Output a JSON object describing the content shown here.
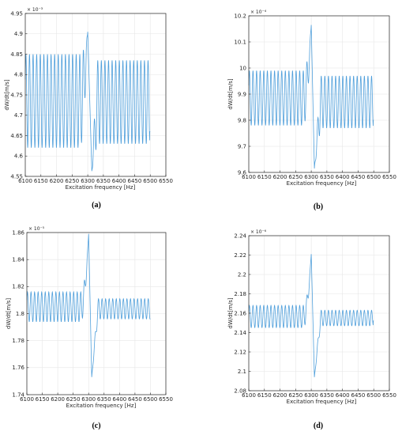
{
  "chart_data": [
    {
      "panel": "(a)",
      "type": "line",
      "xlabel": "Excitation frequency [Hz]",
      "ylabel": "dW/dt[m/s]",
      "exponent": "× 10⁻³",
      "xlim": [
        6100,
        6550
      ],
      "ylim": [
        4.55,
        4.95
      ],
      "xticks": [
        "6100",
        "6150",
        "6200",
        "6250",
        "6300",
        "6350",
        "6400",
        "6450",
        "6500",
        "6550"
      ],
      "yticks": [
        "4.55",
        "4.6",
        "4.65",
        "4.7",
        "4.75",
        "4.8",
        "4.85",
        "4.9",
        "4.95"
      ],
      "grid": true,
      "color": "#4f9fdb",
      "series": [
        {
          "x_range": [
            6100,
            6500
          ],
          "oscillation_period_hz": 11.5,
          "left_band": [
            4.62,
            4.85
          ],
          "right_band": [
            4.63,
            4.835
          ],
          "peak": {
            "x": 6300,
            "y": 4.905
          },
          "trough": {
            "x": 6313,
            "y": 4.563
          },
          "end_value": 4.66
        }
      ]
    },
    {
      "panel": "(b)",
      "type": "line",
      "xlabel": "Excitation frequency [Hz]",
      "ylabel": "dW/dt[m/s]",
      "exponent": "× 10⁻⁴",
      "xlim": [
        6100,
        6550
      ],
      "ylim": [
        9.6,
        10.2
      ],
      "xticks": [
        "6100",
        "6150",
        "6200",
        "6250",
        "6300",
        "6350",
        "6400",
        "6450",
        "6500",
        "6550"
      ],
      "yticks": [
        "9.6",
        "9.7",
        "9.8",
        "9.9",
        "10",
        "10.1",
        "10.2"
      ],
      "grid": true,
      "color": "#4f9fdb",
      "series": [
        {
          "x_range": [
            6100,
            6500
          ],
          "oscillation_period_hz": 11.5,
          "left_band": [
            9.78,
            9.99
          ],
          "right_band": [
            9.77,
            9.97
          ],
          "peak": {
            "x": 6300,
            "y": 10.165
          },
          "trough": {
            "x": 6310,
            "y": 9.615
          },
          "end_value": 9.8
        }
      ]
    },
    {
      "panel": "(c)",
      "type": "line",
      "xlabel": "Excitation frequency [Hz]",
      "ylabel": "dW/dt[m/s]",
      "exponent": "× 10⁻⁵",
      "xlim": [
        6100,
        6550
      ],
      "ylim": [
        1.74,
        1.86
      ],
      "xticks": [
        "6100",
        "6150",
        "6200",
        "6250",
        "6300",
        "6350",
        "6400",
        "6450",
        "6500",
        "6550"
      ],
      "yticks": [
        "1.74",
        "1.76",
        "1.78",
        "1.8",
        "1.82",
        "1.84",
        "1.86"
      ],
      "grid": true,
      "color": "#4f9fdb",
      "series": [
        {
          "x_range": [
            6100,
            6500
          ],
          "oscillation_period_hz": 11.5,
          "left_band": [
            1.794,
            1.816
          ],
          "right_band": [
            1.796,
            1.811
          ],
          "peak": {
            "x": 6300,
            "y": 1.859
          },
          "trough": {
            "x": 6310,
            "y": 1.753
          },
          "end_value": 1.796
        }
      ]
    },
    {
      "panel": "(d)",
      "type": "line",
      "xlabel": "Excitation frequency [Hz]",
      "ylabel": "dW/dt[m/s]",
      "exponent": "× 10⁻⁶",
      "xlim": [
        6100,
        6550
      ],
      "ylim": [
        2.08,
        2.24
      ],
      "xticks": [
        "6100",
        "6150",
        "6200",
        "6250",
        "6300",
        "6350",
        "6400",
        "6450",
        "6500",
        "6550"
      ],
      "yticks": [
        "2.08",
        "2.1",
        "2.12",
        "2.14",
        "2.16",
        "2.18",
        "2.2",
        "2.22",
        "2.24"
      ],
      "grid": true,
      "color": "#4f9fdb",
      "series": [
        {
          "x_range": [
            6100,
            6500
          ],
          "oscillation_period_hz": 11.5,
          "left_band": [
            2.145,
            2.168
          ],
          "right_band": [
            2.147,
            2.163
          ],
          "peak": {
            "x": 6300,
            "y": 2.221
          },
          "trough": {
            "x": 6310,
            "y": 2.094
          },
          "end_value": 2.152
        }
      ]
    }
  ]
}
